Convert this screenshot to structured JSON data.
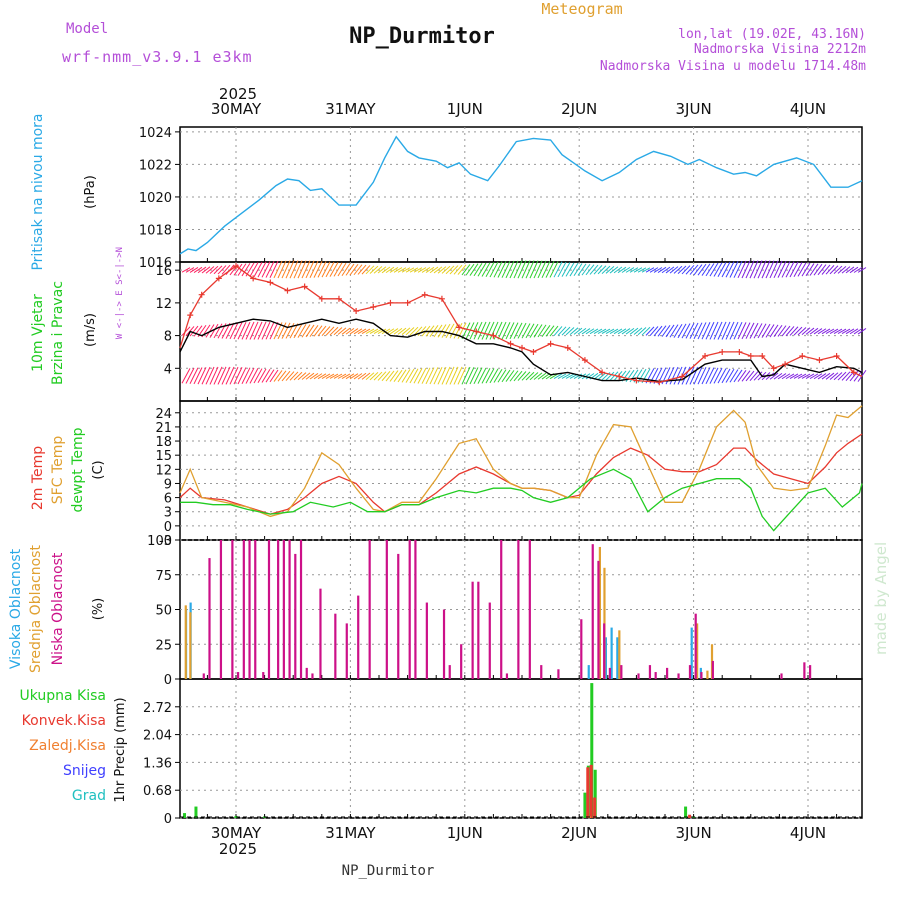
{
  "header": {
    "model_label": "Model",
    "model_name": "wrf-nmm_v3.9.1 e3km",
    "title": "NP_Durmitor",
    "subtitle": "Meteogram",
    "coords": "lon,lat (19.02E, 43.16N)",
    "elevation": "Nadmorska Visina 2212m",
    "model_elevation": "Nadmorska Visina u modelu 1714.48m"
  },
  "footer": {
    "station": "NP_Durmitor",
    "watermark": "made by Angel"
  },
  "colors": {
    "pressure": "#2aa9e6",
    "purple": "#b44fd8",
    "red": "#e8392f",
    "orange": "#e0a030",
    "green": "#22cc22",
    "magenta": "#cc1088",
    "cyan": "#20c0c0",
    "blue": "#4040ff",
    "yellow": "#e8d020"
  },
  "chart_data": [
    {
      "type": "line",
      "name": "pressure",
      "ylabel_left": "Pritisak na nivou mora",
      "ylabel_unit": "(hPa)",
      "ylim": [
        1016,
        1024.3
      ],
      "yticks": [
        1016,
        1018,
        1020,
        1022,
        1024
      ],
      "x_days": [
        0.0,
        0.08,
        0.15,
        0.25,
        0.4,
        0.55,
        0.7,
        0.85,
        0.95,
        1.05,
        1.15,
        1.25,
        1.4,
        1.55,
        1.7,
        1.8,
        1.9,
        2.0,
        2.1,
        2.25,
        2.35,
        2.45,
        2.55,
        2.7,
        2.8,
        2.95,
        3.1,
        3.25,
        3.35,
        3.45,
        3.55,
        3.7,
        3.85,
        4.0,
        4.15,
        4.3,
        4.45,
        4.55,
        4.7,
        4.85,
        4.95,
        5.05,
        5.2,
        5.4,
        5.55,
        5.7,
        5.85,
        6.0
      ],
      "values": [
        1016.5,
        1016.8,
        1016.7,
        1017.2,
        1018.2,
        1019.0,
        1019.8,
        1020.7,
        1021.1,
        1021.0,
        1020.4,
        1020.5,
        1019.5,
        1019.5,
        1020.9,
        1022.4,
        1023.7,
        1022.8,
        1022.4,
        1022.2,
        1021.8,
        1022.1,
        1021.4,
        1021.0,
        1021.9,
        1023.4,
        1023.6,
        1023.5,
        1022.6,
        1022.1,
        1021.6,
        1021.0,
        1021.5,
        1022.3,
        1022.8,
        1022.5,
        1022.0,
        1022.3,
        1021.8,
        1021.4,
        1021.5,
        1021.3,
        1022.0,
        1022.4,
        1022.0,
        1020.6,
        1020.6,
        1021.0
      ]
    },
    {
      "type": "line",
      "name": "wind",
      "ylabel_left": [
        "10m Vjetar",
        "Brzina i Pravac"
      ],
      "ylabel_unit": "(m/s)",
      "ylim": [
        0,
        17
      ],
      "yticks": [
        4,
        8,
        12,
        16
      ],
      "compass": "W <-|-> E  S<-|->N",
      "x_days": [
        0.0,
        0.1,
        0.2,
        0.35,
        0.5,
        0.65,
        0.8,
        0.95,
        1.1,
        1.25,
        1.4,
        1.55,
        1.7,
        1.85,
        2.0,
        2.15,
        2.3,
        2.45,
        2.6,
        2.75,
        2.9,
        3.0,
        3.1,
        3.25,
        3.4,
        3.55,
        3.7,
        3.85,
        4.0,
        4.2,
        4.4,
        4.6,
        4.75,
        4.9,
        5.0,
        5.1,
        5.2,
        5.3,
        5.45,
        5.6,
        5.75,
        5.9,
        6.0
      ],
      "speed": [
        6.0,
        8.5,
        8.0,
        9.0,
        9.5,
        10.0,
        9.8,
        9.0,
        9.5,
        10.0,
        9.5,
        10.0,
        9.5,
        8.0,
        7.8,
        8.5,
        8.5,
        8.0,
        7.0,
        7.0,
        6.5,
        6.0,
        4.5,
        3.2,
        3.5,
        3.0,
        2.5,
        2.5,
        2.8,
        2.4,
        2.6,
        4.5,
        5.0,
        5.0,
        5.0,
        3.0,
        3.2,
        4.5,
        4.0,
        3.5,
        4.2,
        4.0,
        3.5
      ],
      "gust": [
        6.5,
        10.5,
        13.0,
        15.0,
        16.5,
        15.0,
        14.5,
        13.5,
        14.0,
        12.5,
        12.5,
        11.0,
        11.5,
        12.0,
        12.0,
        13.0,
        12.5,
        9.0,
        8.5,
        8.0,
        7.0,
        6.5,
        6.0,
        7.0,
        6.5,
        5.0,
        3.5,
        3.0,
        2.5,
        2.3,
        3.0,
        5.5,
        6.0,
        6.0,
        5.5,
        5.5,
        4.0,
        4.5,
        5.5,
        5.0,
        5.5,
        3.5,
        3.0
      ],
      "barb_rows": [
        16,
        8.5,
        3.0
      ],
      "barb_colors": [
        "#ff2060",
        "#ff8020",
        "#e8d020",
        "#30d030",
        "#20c0c0",
        "#4040ff",
        "#8020e0"
      ]
    },
    {
      "type": "line",
      "name": "temperature",
      "ylabel_left": [
        "2m Temp",
        "SFC Temp",
        "dewpt Temp"
      ],
      "ylabel_unit": "(C)",
      "ylim": [
        -3,
        26.5
      ],
      "yticks": [
        -3,
        0,
        3,
        6,
        9,
        12,
        15,
        18,
        21,
        24
      ],
      "series": [
        {
          "name": "2m Temp",
          "color": "#e8392f",
          "x": [
            0.0,
            0.1,
            0.2,
            0.4,
            0.6,
            0.8,
            0.95,
            1.1,
            1.25,
            1.4,
            1.55,
            1.7,
            1.8,
            1.95,
            2.1,
            2.25,
            2.45,
            2.6,
            2.75,
            2.9,
            3.0,
            3.1,
            3.25,
            3.4,
            3.5,
            3.65,
            3.8,
            3.95,
            4.1,
            4.25,
            4.4,
            4.55,
            4.7,
            4.85,
            4.95,
            5.05,
            5.2,
            5.35,
            5.5,
            5.65,
            5.75,
            5.85,
            6.0
          ],
          "values": [
            6,
            8,
            6,
            5.5,
            4,
            2.5,
            3.5,
            6,
            9,
            10.5,
            9,
            5,
            3,
            4.5,
            4.5,
            7,
            11,
            12.5,
            11,
            9,
            8,
            8,
            7.5,
            6,
            6.5,
            11,
            14.5,
            16.5,
            15,
            12,
            11.5,
            11.5,
            13,
            16.5,
            16.5,
            14,
            11,
            10,
            9,
            12.5,
            15.5,
            17.5,
            19.5
          ]
        },
        {
          "name": "SFC Temp",
          "color": "#e0a030",
          "x": [
            0.0,
            0.1,
            0.2,
            0.4,
            0.6,
            0.8,
            0.95,
            1.1,
            1.25,
            1.4,
            1.55,
            1.7,
            1.8,
            1.95,
            2.1,
            2.25,
            2.45,
            2.6,
            2.75,
            2.9,
            3.0,
            3.1,
            3.25,
            3.4,
            3.5,
            3.65,
            3.8,
            3.95,
            4.1,
            4.25,
            4.4,
            4.55,
            4.7,
            4.85,
            4.95,
            5.05,
            5.2,
            5.35,
            5.5,
            5.65,
            5.75,
            5.85,
            6.0
          ],
          "values": [
            7,
            12,
            6,
            5,
            4,
            2,
            3,
            8,
            15.5,
            13,
            8,
            3.5,
            3,
            5,
            5,
            10,
            17.5,
            18.5,
            12,
            9,
            8,
            8,
            7.5,
            6,
            6,
            15,
            21.5,
            21,
            13,
            5,
            5,
            12,
            21,
            24.5,
            22,
            13,
            8,
            7.5,
            8,
            17,
            23.5,
            23,
            25.5
          ]
        },
        {
          "name": "dewpt Temp",
          "color": "#22cc22",
          "x": [
            0.0,
            0.15,
            0.3,
            0.45,
            0.6,
            0.8,
            1.0,
            1.15,
            1.35,
            1.5,
            1.65,
            1.8,
            1.95,
            2.1,
            2.25,
            2.45,
            2.6,
            2.75,
            2.9,
            3.0,
            3.1,
            3.25,
            3.4,
            3.6,
            3.8,
            3.95,
            4.1,
            4.25,
            4.4,
            4.55,
            4.7,
            4.9,
            5.0,
            5.1,
            5.2,
            5.35,
            5.5,
            5.65,
            5.8,
            5.95,
            6.0
          ],
          "values": [
            5,
            5,
            4.5,
            4.5,
            3.5,
            2.5,
            3,
            5,
            4,
            5,
            3,
            3,
            4.5,
            4.5,
            6,
            7.5,
            7,
            8,
            8,
            7.5,
            6,
            5,
            6,
            10,
            12,
            10,
            3,
            6,
            8,
            9,
            10,
            10,
            8,
            2,
            -1,
            3,
            7,
            8,
            4,
            7,
            9
          ]
        }
      ]
    },
    {
      "type": "bar",
      "name": "clouds",
      "ylabel_left": [
        "Visoka Oblacnost",
        "Srednja Oblacnost",
        "Niska Oblacnost"
      ],
      "ylabel_unit": "(%)",
      "ylim": [
        0,
        100
      ],
      "yticks": [
        0,
        25,
        50,
        75,
        100
      ],
      "series": [
        {
          "name": "Visoka Oblacnost",
          "color": "#2aa9e6",
          "x": [
            0.08,
            0.12,
            3.6,
            3.75,
            3.8,
            3.85,
            4.5,
            4.58
          ],
          "values": [
            50,
            55,
            10,
            30,
            37,
            30,
            37,
            8
          ]
        },
        {
          "name": "Srednja Oblacnost",
          "color": "#e0a030",
          "x": [
            0.06,
            0.1,
            3.68,
            3.72,
            3.85,
            4.53,
            4.62,
            4.66
          ],
          "values": [
            53,
            48,
            95,
            80,
            35,
            40,
            6,
            25
          ]
        },
        {
          "name": "Niska Oblacnost",
          "color": "#cc1088",
          "x": [
            0.2,
            0.25,
            0.35,
            0.45,
            0.5,
            0.55,
            0.6,
            0.65,
            0.72,
            0.77,
            0.85,
            0.9,
            0.95,
            1.0,
            1.05,
            1.1,
            1.15,
            1.22,
            1.35,
            1.45,
            1.55,
            1.65,
            1.8,
            1.9,
            2.0,
            2.05,
            2.15,
            2.3,
            2.35,
            2.45,
            2.55,
            2.6,
            2.7,
            2.8,
            2.85,
            2.95,
            3.05,
            3.15,
            3.3,
            3.5,
            3.6,
            3.65,
            3.7,
            3.75,
            3.85,
            4.0,
            4.1,
            4.15,
            4.25,
            4.35,
            4.45,
            4.5,
            4.55,
            4.65,
            5.25,
            5.45,
            5.5
          ],
          "values": [
            4,
            87,
            100,
            100,
            5,
            100,
            100,
            100,
            5,
            100,
            100,
            100,
            100,
            90,
            100,
            8,
            4,
            65,
            47,
            40,
            60,
            100,
            100,
            90,
            100,
            100,
            55,
            50,
            10,
            25,
            70,
            70,
            55,
            100,
            4,
            100,
            100,
            10,
            7,
            43,
            97,
            85,
            40,
            8,
            10,
            4,
            10,
            5,
            8,
            4,
            10,
            47,
            5,
            13,
            4,
            12,
            10
          ]
        }
      ]
    },
    {
      "type": "bar",
      "name": "precipitation",
      "ylabel_left": [
        "Ukupna Kisa",
        "Konvek.Kisa",
        "Zaledj.Kisa",
        "Snijeg",
        "Grad"
      ],
      "ylabel_unit": "1hr Precip (mm)",
      "ylim": [
        0,
        3.4
      ],
      "yticks": [
        0,
        0.68,
        1.36,
        2.04,
        2.72
      ],
      "series": [
        {
          "name": "Ukupna Kisa",
          "color": "#22cc22",
          "x": [
            0.05,
            0.15,
            0.5,
            0.75,
            3.55,
            3.58,
            3.61,
            3.64,
            4.43,
            4.5
          ],
          "values": [
            0.12,
            0.28,
            0.05,
            0.04,
            0.62,
            1.28,
            3.3,
            1.18,
            0.28,
            0.04
          ]
        },
        {
          "name": "Konvek.Kisa",
          "color": "#e8392f",
          "x": [
            3.575,
            3.605,
            3.635,
            4.465
          ],
          "values": [
            1.24,
            1.3,
            0.5,
            0.08
          ]
        },
        {
          "name": "Zaledj.Kisa",
          "color": "#f08030",
          "x": [
            3.59
          ],
          "values": [
            0.04
          ]
        }
      ]
    }
  ],
  "x_axis": {
    "day_labels": [
      "30MAY",
      "31MAY",
      "1JUN",
      "2JUN",
      "3JUN",
      "4JUN"
    ],
    "year": "2025"
  }
}
